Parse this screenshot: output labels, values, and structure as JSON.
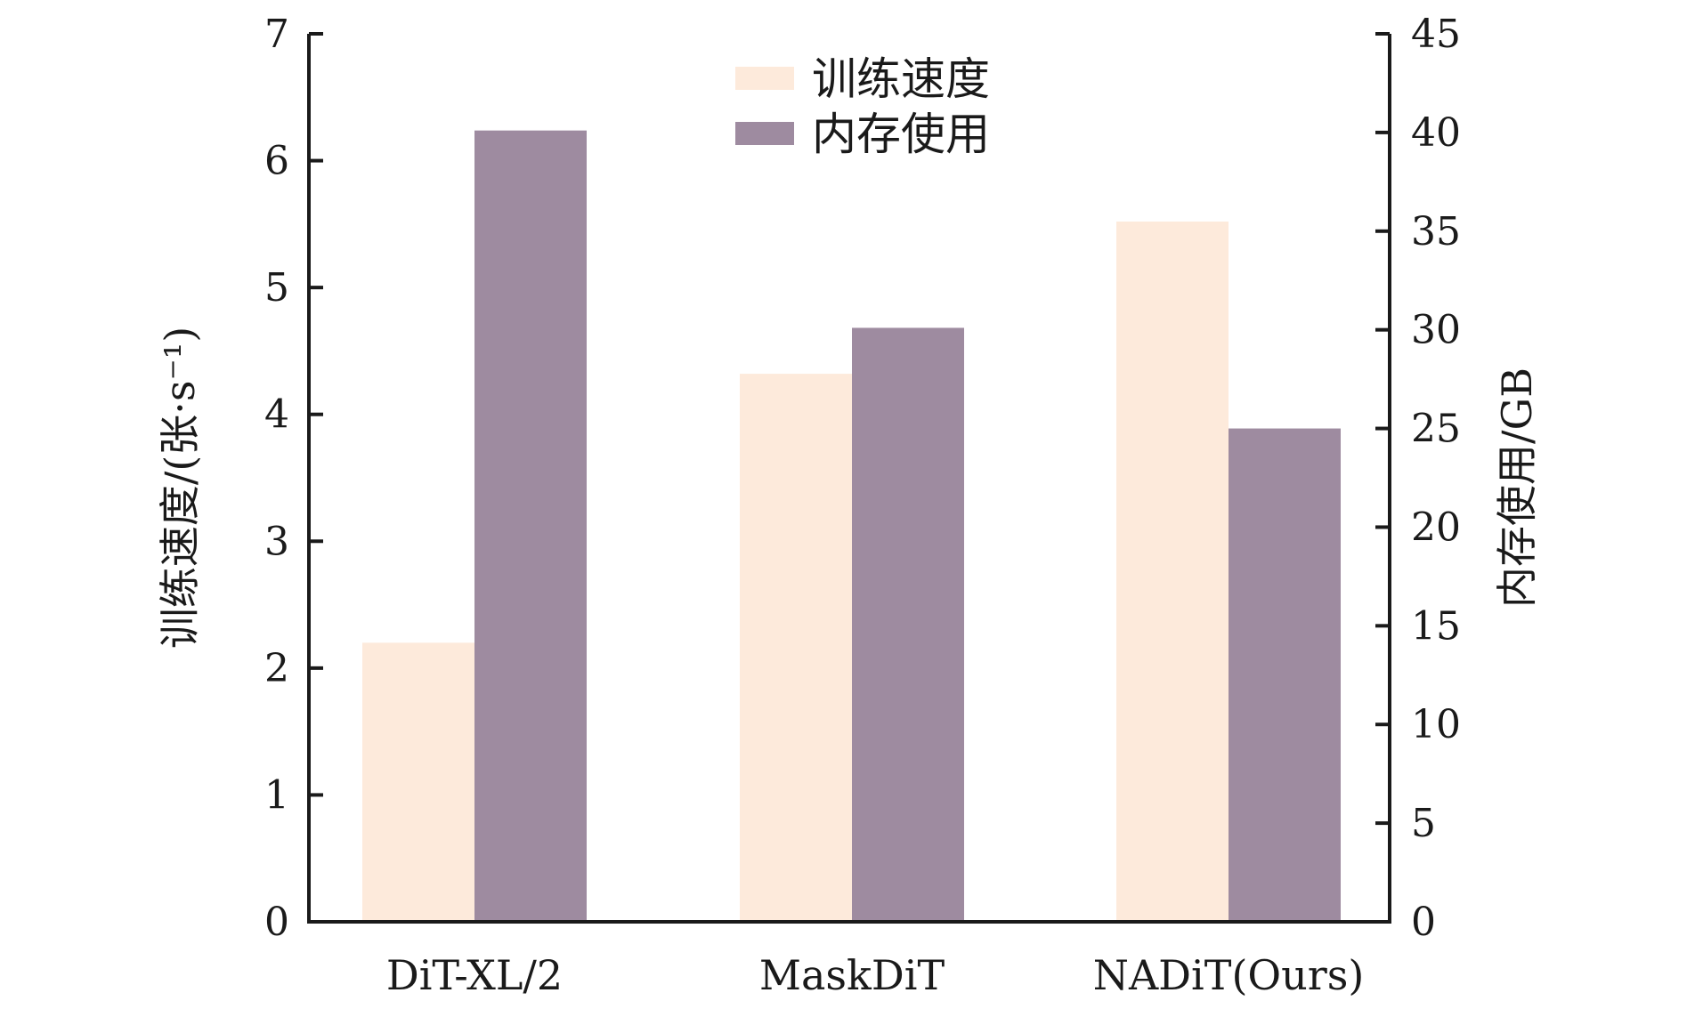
{
  "chart_data": {
    "type": "bar",
    "categories": [
      "DiT-XL/2",
      "MaskDiT",
      "NADiT(Ours)"
    ],
    "series": [
      {
        "name": "训练速度",
        "axis": "left",
        "color": "#fdeadb",
        "values": [
          2.2,
          4.32,
          5.52
        ]
      },
      {
        "name": "内存使用",
        "axis": "right",
        "color": "#9e8ba0",
        "values": [
          40.1,
          30.1,
          25.0
        ]
      }
    ],
    "ylabel_left": "训练速度/(张·s⁻¹)",
    "ylabel_right": "内存使用/GB",
    "ylim_left": [
      0,
      7
    ],
    "ylim_right": [
      0,
      45
    ],
    "yticks_left": [
      "0",
      "1",
      "2",
      "3",
      "4",
      "5",
      "6",
      "7"
    ],
    "yticks_right": [
      "0",
      "5",
      "10",
      "15",
      "20",
      "25",
      "30",
      "35",
      "40",
      "45"
    ],
    "legend_position": "top-center",
    "grid": false,
    "axis_color": "#1a1a1a"
  }
}
